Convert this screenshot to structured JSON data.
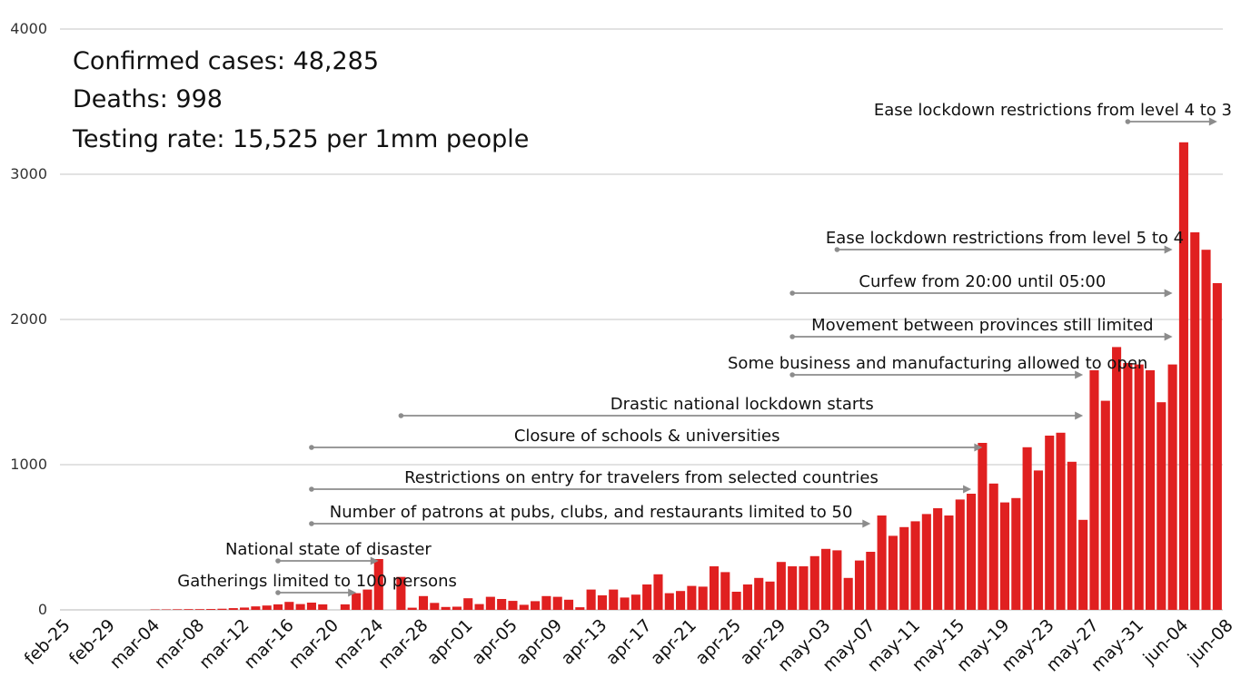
{
  "summary": {
    "confirmed": "Confirmed cases: 48,285",
    "deaths": "Deaths: 998",
    "testing": "Testing rate: 15,525 per 1mm people"
  },
  "chart_data": {
    "type": "bar",
    "title": "",
    "xlabel": "",
    "ylabel": "",
    "ylim": [
      0,
      4000
    ],
    "yticks": [
      0,
      1000,
      2000,
      3000,
      4000
    ],
    "grid": true,
    "bar_color": "#e02020",
    "start_date": "feb-25",
    "tick_labels": [
      "feb-25",
      "feb-29",
      "mar-04",
      "mar-08",
      "mar-12",
      "mar-16",
      "mar-20",
      "mar-24",
      "mar-28",
      "apr-01",
      "apr-05",
      "apr-09",
      "apr-13",
      "apr-17",
      "apr-21",
      "apr-25",
      "apr-29",
      "may-03",
      "may-07",
      "may-11",
      "may-15",
      "may-19",
      "may-23",
      "may-27",
      "may-31",
      "jun-04",
      "jun-08"
    ],
    "values": [
      0,
      0,
      0,
      0,
      0,
      0,
      0,
      0,
      3,
      3,
      4,
      5,
      5,
      6,
      8,
      12,
      16,
      24,
      30,
      38,
      55,
      40,
      50,
      38,
      0,
      38,
      115,
      140,
      350,
      0,
      227,
      15,
      95,
      48,
      20,
      22,
      80,
      40,
      90,
      75,
      62,
      35,
      60,
      95,
      90,
      70,
      18,
      140,
      100,
      140,
      85,
      105,
      175,
      245,
      115,
      130,
      165,
      160,
      300,
      260,
      125,
      175,
      220,
      195,
      330,
      300,
      300,
      370,
      420,
      410,
      220,
      340,
      400,
      650,
      510,
      570,
      610,
      660,
      700,
      650,
      760,
      800,
      1150,
      870,
      740,
      770,
      1120,
      960,
      1200,
      1220,
      1020,
      620,
      1650,
      1440,
      1810,
      1700,
      1690,
      1650,
      1430,
      1690,
      3220,
      2600,
      2480,
      2250
    ]
  },
  "annotations": [
    {
      "text": "Ease lockdown restrictions from level 4 to 3",
      "from": "may-30",
      "to": "jun-07"
    },
    {
      "text": "Ease lockdown restrictions from level 5 to 4",
      "from": "may-04",
      "to": "jun-03"
    },
    {
      "text": "Curfew from 20:00 until 05:00",
      "from": "apr-30",
      "to": "jun-03"
    },
    {
      "text": "Movement between provinces still limited",
      "from": "apr-30",
      "to": "jun-03"
    },
    {
      "text": "Some business and manufacturing allowed to open",
      "from": "apr-30",
      "to": "may-26"
    },
    {
      "text": "Drastic national lockdown starts",
      "from": "mar-26",
      "to": "may-26"
    },
    {
      "text": "Closure of schools & universities",
      "from": "mar-18",
      "to": "may-17"
    },
    {
      "text": "Restrictions on entry for travelers from selected countries",
      "from": "mar-18",
      "to": "may-16"
    },
    {
      "text": "Number of patrons at pubs, clubs, and restaurants limited to 50",
      "from": "mar-18",
      "to": "may-07"
    },
    {
      "text": "National state of disaster",
      "from": "mar-15",
      "to": "mar-24"
    },
    {
      "text": "Gatherings limited to 100 persons",
      "from": "mar-15",
      "to": "mar-22"
    }
  ]
}
